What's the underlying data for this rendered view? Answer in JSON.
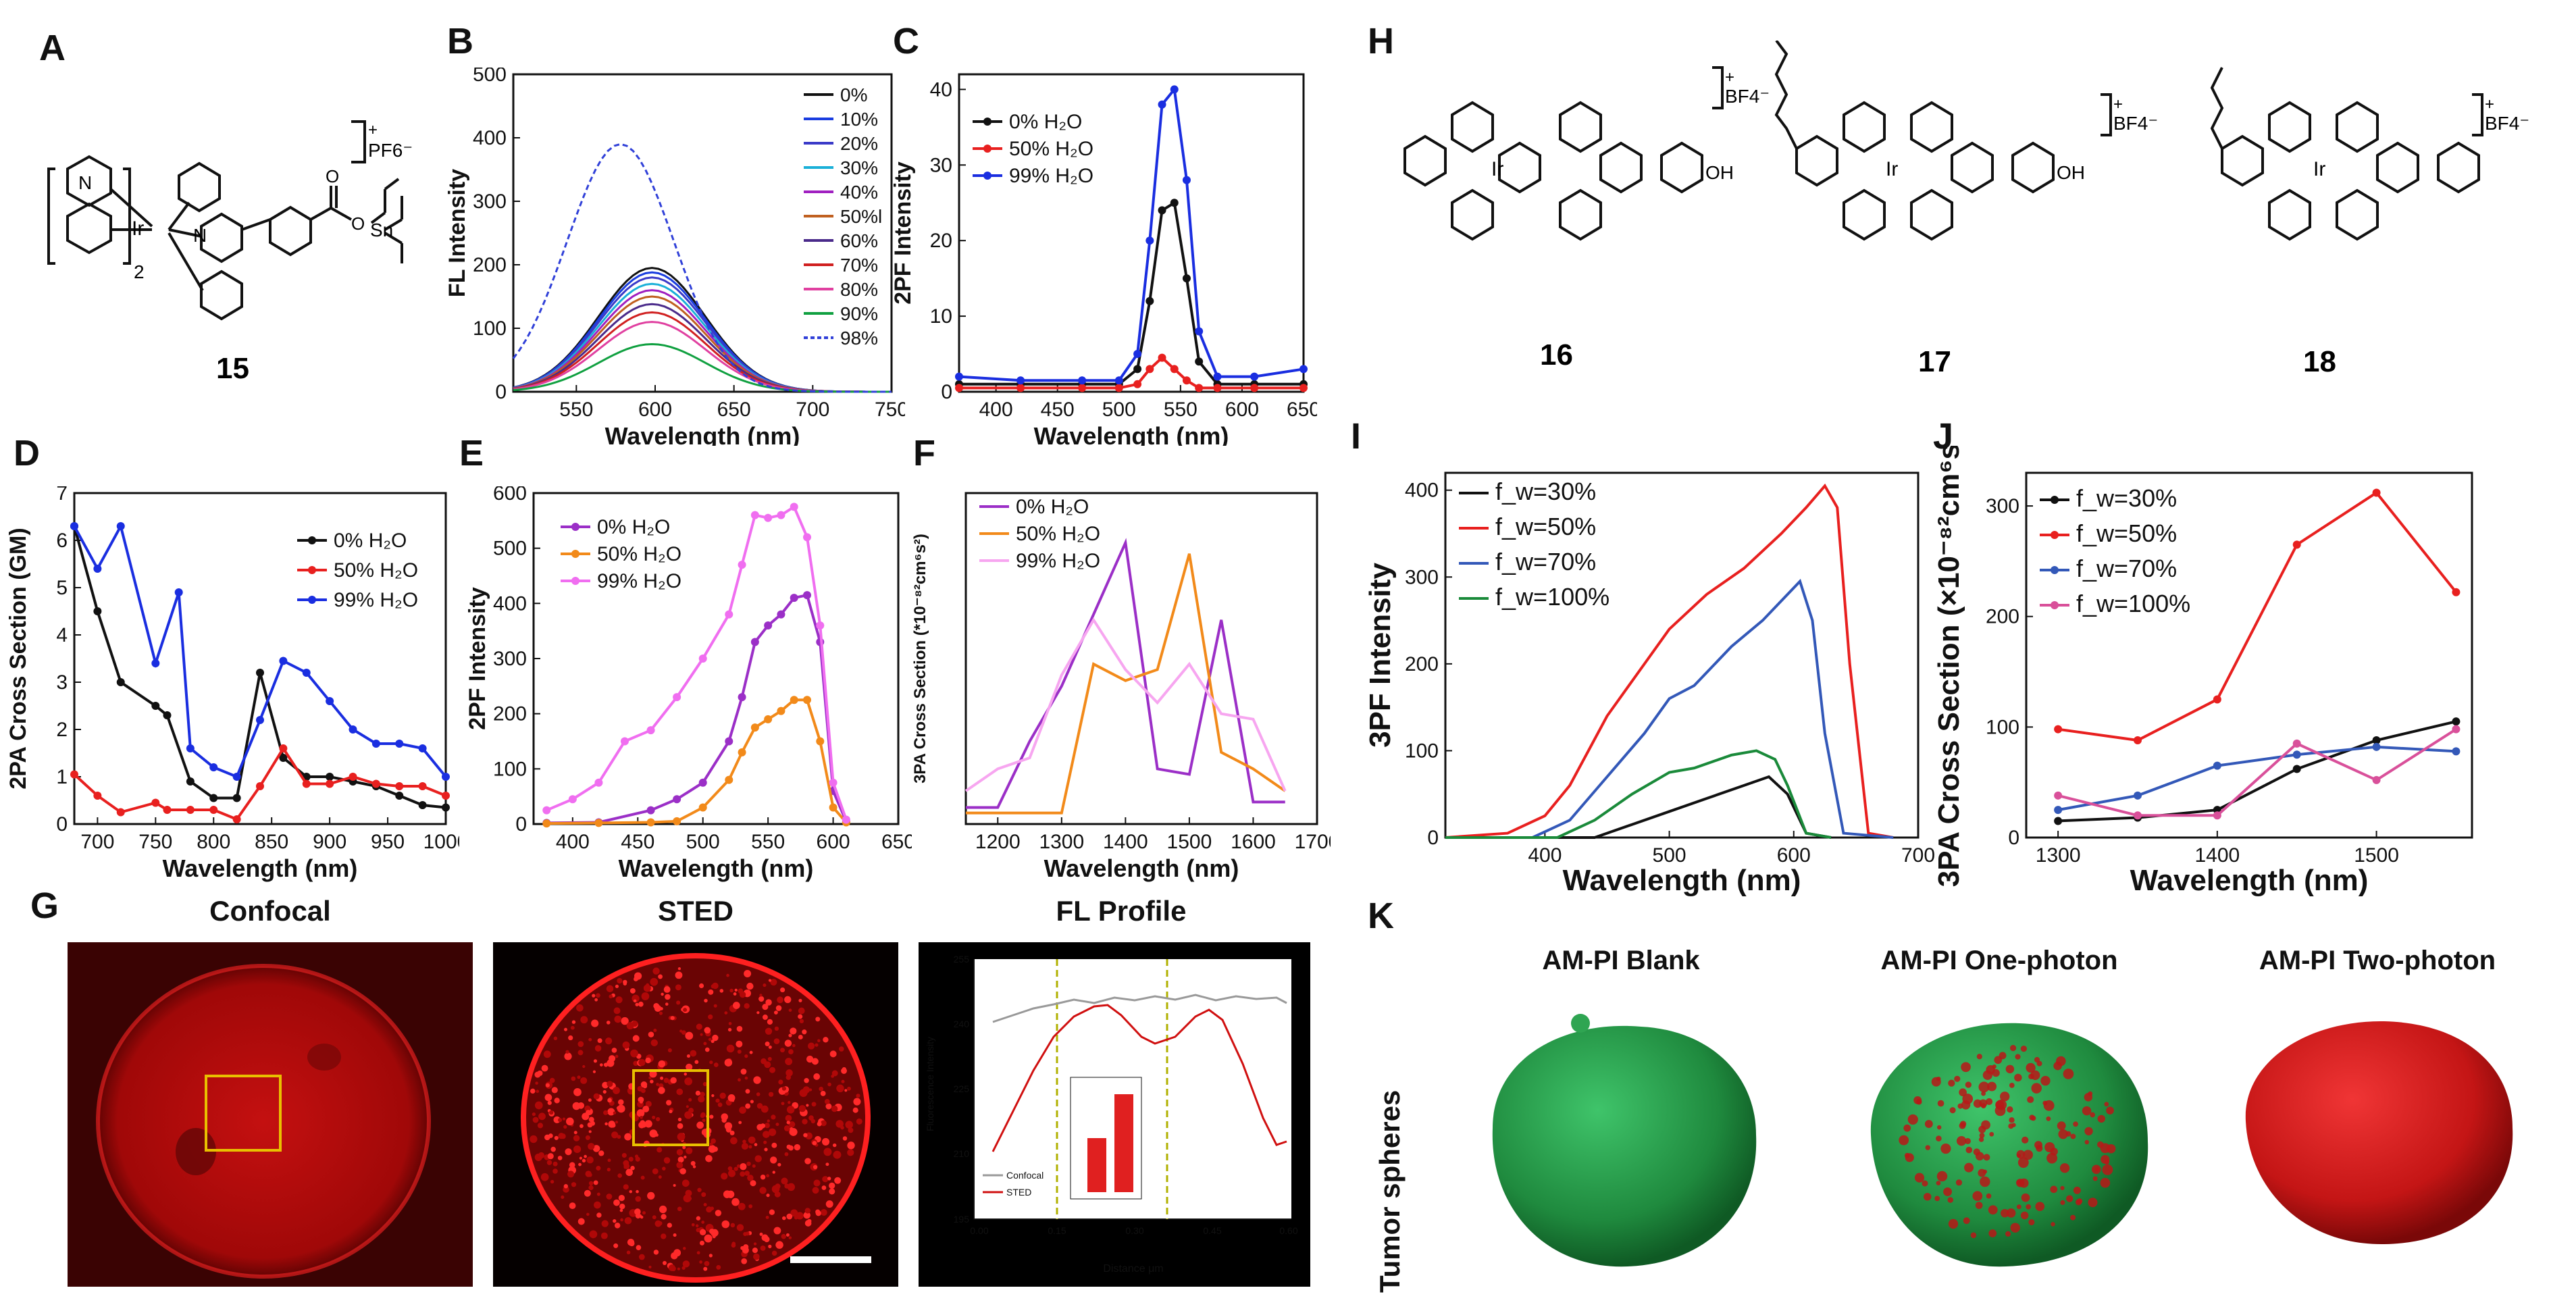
{
  "panel_labels": {
    "A": "A",
    "B": "B",
    "C": "C",
    "D": "D",
    "E": "E",
    "F": "F",
    "G": "G",
    "H": "H",
    "I": "I",
    "J": "J",
    "K": "K"
  },
  "compounds": {
    "c15": {
      "label": "15",
      "counter_ion": "PF6⁻",
      "sub": "2",
      "metal": "Ir",
      "tin": "Sn"
    },
    "c16": {
      "label": "16",
      "counter_ion": "BF4⁻",
      "metal": "Ir"
    },
    "c17": {
      "label": "17",
      "counter_ion": "BF4⁻",
      "metal": "Ir"
    },
    "c18": {
      "label": "18",
      "counter_ion": "BF4⁻",
      "metal": "Ir"
    }
  },
  "colors": {
    "black": "#111111",
    "red": "#e8201f",
    "blue": "#1a2ee0",
    "purple": "#9b2fc7",
    "orange": "#f28a1a",
    "pink": "#f06ef0",
    "lightpink": "#f7a6f0",
    "green": "#1a8a3a",
    "steelblue": "#3358b8",
    "magenta": "#d9509a"
  },
  "chart_data": [
    {
      "id": "B",
      "type": "line",
      "title": "",
      "xlabel": "Wavelength (nm)",
      "ylabel": "FL Intensity",
      "xlim": [
        510,
        750
      ],
      "ylim": [
        0,
        500
      ],
      "xticks": [
        550,
        600,
        650,
        700,
        750
      ],
      "yticks": [
        0,
        100,
        200,
        300,
        400,
        500
      ],
      "series": [
        {
          "name": "0%",
          "peak": 195,
          "center": 598
        },
        {
          "name": "10%",
          "peak": 188,
          "center": 598
        },
        {
          "name": "20%",
          "peak": 180,
          "center": 598
        },
        {
          "name": "30%",
          "peak": 170,
          "center": 598
        },
        {
          "name": "40%",
          "peak": 160,
          "center": 598
        },
        {
          "name": "50%l",
          "peak": 150,
          "center": 598
        },
        {
          "name": "60%",
          "peak": 138,
          "center": 598
        },
        {
          "name": "70%",
          "peak": 125,
          "center": 598
        },
        {
          "name": "80%",
          "peak": 110,
          "center": 598
        },
        {
          "name": "90%",
          "peak": 75,
          "center": 598
        },
        {
          "name": "98%",
          "peak": 390,
          "center": 578
        }
      ]
    },
    {
      "id": "C",
      "type": "line",
      "xlabel": "Wavelength (nm)",
      "ylabel": "2PF Intensity",
      "xlim": [
        370,
        650
      ],
      "ylim": [
        0,
        42
      ],
      "xticks": [
        400,
        450,
        500,
        550,
        600,
        650
      ],
      "yticks": [
        0,
        10,
        20,
        30,
        40
      ],
      "series": [
        {
          "name": "0% H₂O",
          "x": [
            370,
            420,
            470,
            500,
            515,
            525,
            535,
            545,
            555,
            565,
            580,
            610,
            650
          ],
          "y": [
            1,
            1,
            1,
            1,
            3,
            12,
            24,
            25,
            15,
            4,
            1,
            1,
            1
          ]
        },
        {
          "name": "50% H₂O",
          "x": [
            370,
            420,
            470,
            500,
            515,
            525,
            535,
            545,
            555,
            565,
            580,
            610,
            650
          ],
          "y": [
            0.5,
            0.5,
            0.5,
            0.5,
            1,
            3,
            4.5,
            3,
            1.5,
            0.5,
            0.5,
            0.5,
            0.5
          ]
        },
        {
          "name": "99% H₂O",
          "x": [
            370,
            420,
            470,
            500,
            515,
            525,
            535,
            545,
            555,
            565,
            580,
            610,
            650
          ],
          "y": [
            2,
            1.5,
            1.5,
            1.5,
            5,
            20,
            38,
            40,
            28,
            8,
            2,
            2,
            3
          ]
        }
      ]
    },
    {
      "id": "D",
      "type": "line",
      "xlabel": "Wavelength (nm)",
      "ylabel": "2PA Cross Section (GM)",
      "xlim": [
        680,
        1000
      ],
      "ylim": [
        0,
        7
      ],
      "xticks": [
        700,
        750,
        800,
        850,
        900,
        950,
        1000
      ],
      "yticks": [
        0,
        1,
        2,
        3,
        4,
        5,
        6,
        7
      ],
      "series": [
        {
          "name": "0% H₂O",
          "x": [
            680,
            700,
            720,
            750,
            760,
            780,
            800,
            820,
            840,
            860,
            880,
            900,
            920,
            940,
            960,
            980,
            1000
          ],
          "y": [
            6.3,
            4.5,
            3.0,
            2.5,
            2.3,
            0.9,
            0.55,
            0.55,
            3.2,
            1.4,
            1.0,
            1.0,
            0.9,
            0.8,
            0.6,
            0.4,
            0.35
          ]
        },
        {
          "name": "50% H₂O",
          "x": [
            680,
            700,
            720,
            750,
            760,
            780,
            800,
            820,
            840,
            860,
            880,
            900,
            920,
            940,
            960,
            980,
            1000
          ],
          "y": [
            1.05,
            0.6,
            0.25,
            0.45,
            0.3,
            0.3,
            0.3,
            0.1,
            0.8,
            1.6,
            0.85,
            0.85,
            1.0,
            0.85,
            0.8,
            0.8,
            0.6
          ]
        },
        {
          "name": "99% H₂O",
          "x": [
            680,
            700,
            720,
            750,
            770,
            780,
            800,
            820,
            840,
            860,
            880,
            900,
            920,
            940,
            960,
            980,
            1000
          ],
          "y": [
            6.3,
            5.4,
            6.3,
            3.4,
            4.9,
            1.6,
            1.2,
            1.0,
            2.2,
            3.45,
            3.2,
            2.6,
            2.0,
            1.7,
            1.7,
            1.6,
            1.0
          ]
        }
      ]
    },
    {
      "id": "E",
      "type": "line",
      "xlabel": "Wavelength (nm)",
      "ylabel": "2PF Intensity",
      "xlim": [
        370,
        650
      ],
      "ylim": [
        0,
        600
      ],
      "xticks": [
        400,
        450,
        500,
        550,
        600,
        650
      ],
      "yticks": [
        0,
        100,
        200,
        300,
        400,
        500,
        600
      ],
      "series": [
        {
          "name": "0% H₂O",
          "x": [
            380,
            420,
            460,
            480,
            500,
            520,
            530,
            540,
            550,
            560,
            570,
            580,
            590,
            600,
            610
          ],
          "y": [
            2,
            3,
            25,
            45,
            75,
            150,
            230,
            330,
            360,
            380,
            410,
            415,
            330,
            60,
            5
          ]
        },
        {
          "name": "50% H₂O",
          "x": [
            380,
            420,
            460,
            480,
            500,
            520,
            530,
            540,
            550,
            560,
            570,
            580,
            590,
            600,
            610
          ],
          "y": [
            1,
            2,
            3,
            5,
            30,
            80,
            130,
            175,
            190,
            205,
            225,
            225,
            150,
            30,
            3
          ]
        },
        {
          "name": "99% H₂O",
          "x": [
            380,
            400,
            420,
            440,
            460,
            480,
            500,
            520,
            530,
            540,
            550,
            560,
            570,
            580,
            590,
            600,
            610
          ],
          "y": [
            25,
            45,
            75,
            150,
            170,
            230,
            300,
            380,
            470,
            560,
            555,
            560,
            575,
            520,
            360,
            75,
            8
          ]
        }
      ]
    },
    {
      "id": "F",
      "type": "line",
      "xlabel": "Wavelength (nm)",
      "ylabel": "3PA Cross Section (*10⁻⁸²cm⁶s²)",
      "xlim": [
        1150,
        1700
      ],
      "ylim": [
        0,
        30
      ],
      "xticks": [
        1200,
        1300,
        1400,
        1500,
        1600,
        1700
      ],
      "yticks": [],
      "series": [
        {
          "name": "0% H₂O",
          "x": [
            1150,
            1200,
            1250,
            1300,
            1350,
            1400,
            1450,
            1500,
            1550,
            1600,
            1650
          ],
          "y": [
            1.5,
            1.5,
            7.5,
            12.5,
            19,
            25.5,
            5,
            4.5,
            18.5,
            2,
            2
          ]
        },
        {
          "name": "50% H₂O",
          "x": [
            1150,
            1200,
            1250,
            1300,
            1350,
            1400,
            1450,
            1500,
            1550,
            1600,
            1650
          ],
          "y": [
            1,
            1,
            1,
            1,
            14.5,
            13,
            14,
            24.5,
            6.5,
            5,
            3
          ]
        },
        {
          "name": "99% H₂O",
          "x": [
            1150,
            1200,
            1250,
            1300,
            1350,
            1400,
            1450,
            1500,
            1550,
            1600,
            1650
          ],
          "y": [
            3,
            5,
            6,
            13.5,
            18.5,
            14,
            11,
            14.5,
            10,
            9.5,
            3
          ]
        }
      ]
    },
    {
      "id": "I",
      "type": "line",
      "xlabel": "Wavelength (nm)",
      "ylabel": "3PF Intensity",
      "xlim": [
        320,
        700
      ],
      "ylim": [
        0,
        420
      ],
      "xticks": [
        400,
        500,
        600,
        700
      ],
      "yticks": [
        0,
        100,
        200,
        300,
        400
      ],
      "series": [
        {
          "name": "f_w=30%",
          "x": [
            320,
            440,
            470,
            500,
            530,
            560,
            580,
            595,
            610,
            630
          ],
          "y": [
            0,
            0,
            15,
            30,
            45,
            60,
            70,
            50,
            5,
            0
          ]
        },
        {
          "name": "f_w=50%",
          "x": [
            320,
            370,
            400,
            420,
            450,
            480,
            500,
            530,
            560,
            590,
            610,
            625,
            635,
            645,
            660,
            680
          ],
          "y": [
            0,
            5,
            25,
            60,
            140,
            200,
            240,
            280,
            310,
            350,
            380,
            405,
            380,
            200,
            5,
            0
          ]
        },
        {
          "name": "f_w=70%",
          "x": [
            320,
            390,
            420,
            450,
            480,
            500,
            520,
            550,
            575,
            595,
            605,
            615,
            625,
            640,
            680
          ],
          "y": [
            0,
            0,
            20,
            70,
            120,
            160,
            175,
            220,
            250,
            280,
            295,
            250,
            120,
            5,
            0
          ]
        },
        {
          "name": "f_w=100%",
          "x": [
            320,
            410,
            440,
            470,
            500,
            520,
            550,
            570,
            585,
            595,
            610,
            630
          ],
          "y": [
            0,
            0,
            20,
            50,
            75,
            80,
            95,
            100,
            90,
            60,
            5,
            0
          ]
        }
      ]
    },
    {
      "id": "J",
      "type": "line",
      "xlabel": "Wavelength (nm)",
      "ylabel": "3PA Cross Section (×10⁻⁸²cm⁶s²)",
      "xlim": [
        1280,
        1560
      ],
      "ylim": [
        0,
        330
      ],
      "xticks": [
        1300,
        1400,
        1500
      ],
      "yticks": [
        0,
        100,
        200,
        300
      ],
      "series": [
        {
          "name": "f_w=30%",
          "x": [
            1300,
            1350,
            1400,
            1450,
            1500,
            1550
          ],
          "y": [
            15,
            18,
            25,
            62,
            88,
            105
          ]
        },
        {
          "name": "f_w=50%",
          "x": [
            1300,
            1350,
            1400,
            1450,
            1500,
            1550
          ],
          "y": [
            98,
            88,
            125,
            265,
            312,
            222
          ]
        },
        {
          "name": "f_w=70%",
          "x": [
            1300,
            1350,
            1400,
            1450,
            1500,
            1550
          ],
          "y": [
            25,
            38,
            65,
            75,
            82,
            78
          ]
        },
        {
          "name": "f_w=100%",
          "x": [
            1300,
            1350,
            1400,
            1450,
            1500,
            1550
          ],
          "y": [
            38,
            20,
            20,
            85,
            52,
            98
          ]
        }
      ]
    }
  ],
  "panelG": {
    "confocal_title": "Confocal",
    "sted_title": "STED",
    "profile_title": "FL Profile",
    "profile_ylabel": "Fluorescence Intensity",
    "profile_xlabel": "Distance μm",
    "profile_yticks": [
      "195",
      "210",
      "225",
      "240",
      "255"
    ],
    "profile_xticks": [
      "0.00",
      "0.15",
      "0.30",
      "0.45",
      "0.60"
    ],
    "legend_confocal": "Confocal",
    "legend_sted": "STED"
  },
  "panelK": {
    "side_label": "Tumor spheres",
    "blank": "AM-PI Blank",
    "one_photon": "AM-PI One-photon",
    "two_photon": "AM-PI Two-photon"
  }
}
